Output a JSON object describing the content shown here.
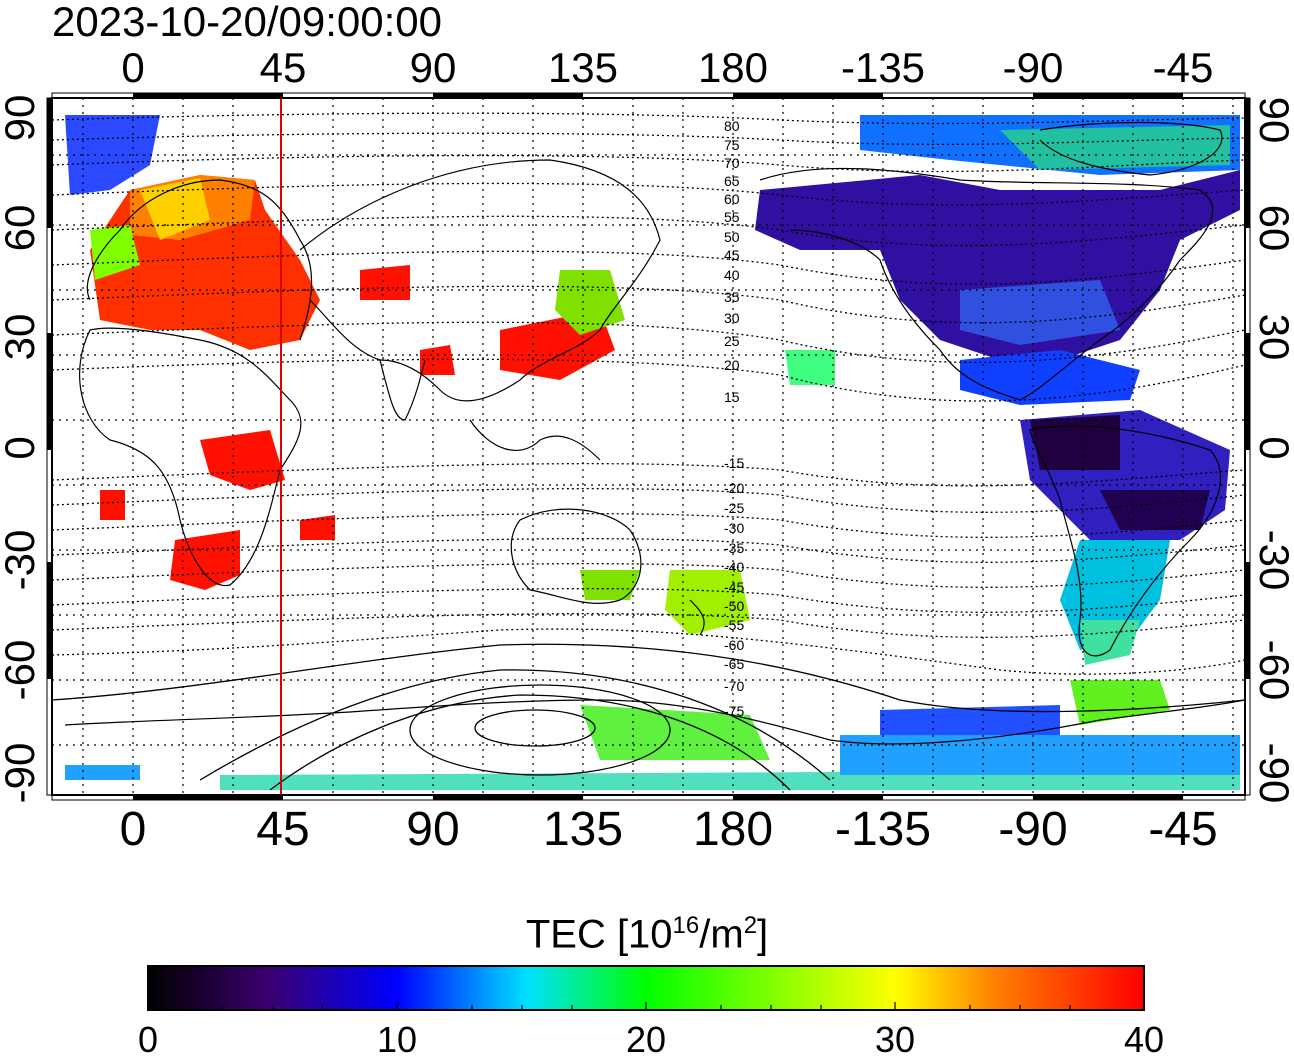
{
  "title": "2023-10-20/09:00:00",
  "map": {
    "lon_tick_labels": [
      "0",
      "45",
      "90",
      "135",
      "180",
      "-135",
      "-90",
      "-45"
    ],
    "lat_tick_labels_left": [
      "90",
      "60",
      "30",
      "0",
      "-30",
      "-60",
      "-90"
    ],
    "lat_tick_labels_right": [
      "90",
      "60",
      "30",
      "0",
      "-30",
      "-60",
      "-90"
    ],
    "contour_labels": [
      "80",
      "75",
      "70",
      "65",
      "60",
      "55",
      "50",
      "45",
      "40",
      "35",
      "30",
      "25",
      "20",
      "15",
      "-15",
      "-20",
      "-25",
      "-30",
      "-35",
      "-40",
      "-45",
      "-50",
      "-55",
      "-60",
      "-65",
      "-70",
      "-75"
    ],
    "terminator_longitude": 45,
    "terminator_color": "#e00000"
  },
  "colorbar": {
    "title_prefix": "TEC  [10",
    "title_exp1": "16",
    "title_mid": "/m",
    "title_exp2": "2",
    "title_suffix": "]",
    "min": 0,
    "max": 40,
    "tick_labels": [
      "0",
      "10",
      "20",
      "30",
      "40"
    ],
    "colors": [
      "#000000",
      "#3a006e",
      "#0000ff",
      "#00e0ff",
      "#00ff00",
      "#ffff00",
      "#ff8000",
      "#ff0000"
    ]
  }
}
